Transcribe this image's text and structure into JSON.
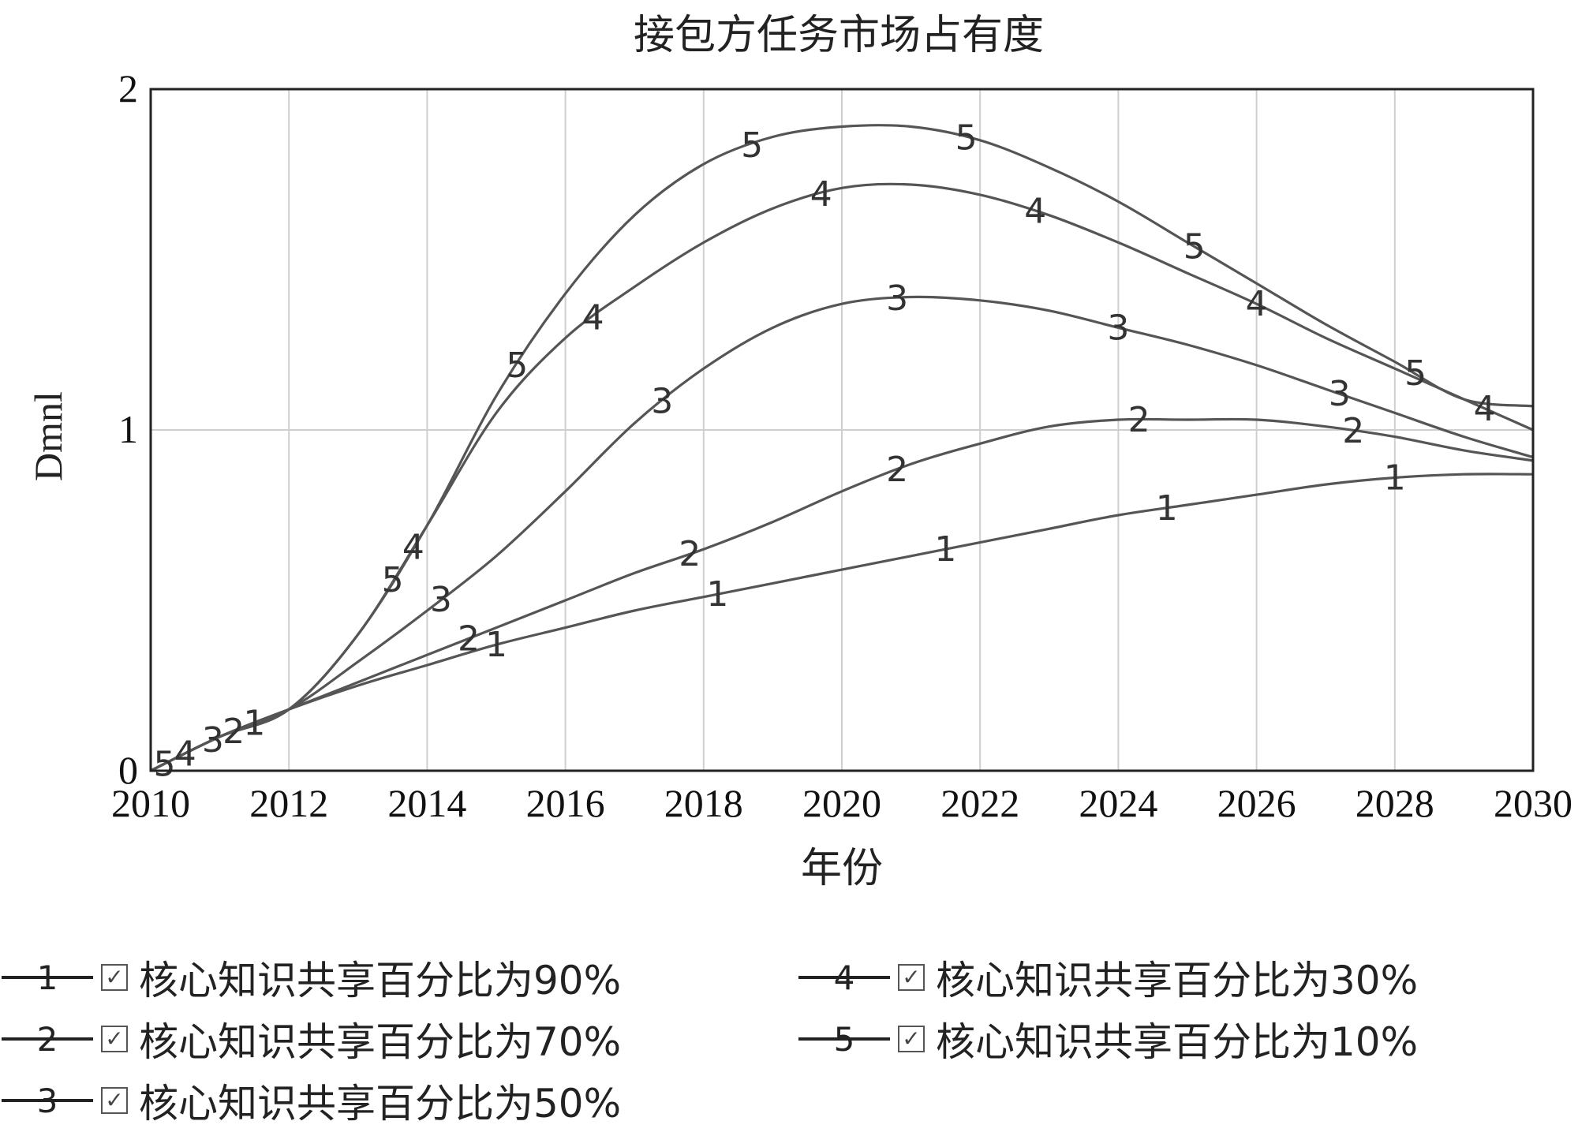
{
  "chart_data": {
    "type": "line",
    "title": "接包方任务市场占有度",
    "xlabel": "年份",
    "ylabel": "Dmnl",
    "xlim": [
      2010,
      2030
    ],
    "ylim": [
      0,
      2
    ],
    "x_ticks": [
      "2010",
      "2012",
      "2014",
      "2016",
      "2018",
      "2020",
      "2022",
      "2024",
      "2026",
      "2028",
      "2030"
    ],
    "y_ticks": [
      "0",
      "1",
      "2"
    ],
    "grid": true,
    "legend_position": "bottom",
    "series": [
      {
        "id": "1",
        "name": "核心知识共享百分比为90%",
        "x": [
          2010,
          2011,
          2012,
          2013,
          2014,
          2015,
          2016,
          2017,
          2018,
          2019,
          2020,
          2021,
          2022,
          2023,
          2024,
          2025,
          2026,
          2027,
          2028,
          2029,
          2030
        ],
        "y": [
          0.0,
          0.1,
          0.18,
          0.25,
          0.31,
          0.37,
          0.42,
          0.47,
          0.51,
          0.55,
          0.59,
          0.63,
          0.67,
          0.71,
          0.75,
          0.78,
          0.81,
          0.84,
          0.86,
          0.87,
          0.87
        ]
      },
      {
        "id": "2",
        "name": "核心知识共享百分比为70%",
        "x": [
          2010,
          2011,
          2012,
          2013,
          2014,
          2015,
          2016,
          2017,
          2018,
          2019,
          2020,
          2021,
          2022,
          2023,
          2024,
          2025,
          2026,
          2027,
          2028,
          2029,
          2030
        ],
        "y": [
          0.0,
          0.1,
          0.18,
          0.26,
          0.34,
          0.42,
          0.5,
          0.58,
          0.65,
          0.73,
          0.82,
          0.9,
          0.96,
          1.01,
          1.03,
          1.03,
          1.03,
          1.01,
          0.98,
          0.94,
          0.91
        ]
      },
      {
        "id": "3",
        "name": "核心知识共享百分比为50%",
        "x": [
          2010,
          2011,
          2012,
          2013,
          2014,
          2015,
          2016,
          2017,
          2018,
          2019,
          2020,
          2021,
          2022,
          2023,
          2024,
          2025,
          2026,
          2027,
          2028,
          2029,
          2030
        ],
        "y": [
          0.0,
          0.1,
          0.18,
          0.32,
          0.47,
          0.63,
          0.82,
          1.02,
          1.18,
          1.3,
          1.37,
          1.39,
          1.38,
          1.35,
          1.3,
          1.25,
          1.19,
          1.12,
          1.05,
          0.98,
          0.92
        ]
      },
      {
        "id": "4",
        "name": "核心知识共享百分比为30%",
        "x": [
          2010,
          2011,
          2012,
          2013,
          2014,
          2015,
          2016,
          2017,
          2018,
          2019,
          2020,
          2021,
          2022,
          2023,
          2024,
          2025,
          2026,
          2027,
          2028,
          2029,
          2030
        ],
        "y": [
          0.0,
          0.1,
          0.18,
          0.4,
          0.72,
          1.05,
          1.27,
          1.42,
          1.55,
          1.65,
          1.71,
          1.72,
          1.69,
          1.63,
          1.55,
          1.46,
          1.37,
          1.27,
          1.18,
          1.09,
          1.0
        ]
      },
      {
        "id": "5",
        "name": "核心知识共享百分比为10%",
        "x": [
          2010,
          2011,
          2012,
          2013,
          2014,
          2015,
          2016,
          2017,
          2018,
          2019,
          2020,
          2021,
          2022,
          2023,
          2024,
          2025,
          2026,
          2027,
          2028,
          2029,
          2030
        ],
        "y": [
          0.0,
          0.1,
          0.18,
          0.4,
          0.72,
          1.1,
          1.4,
          1.63,
          1.78,
          1.86,
          1.89,
          1.89,
          1.85,
          1.77,
          1.67,
          1.55,
          1.43,
          1.31,
          1.2,
          1.09,
          1.07
        ]
      }
    ],
    "markers": {
      "1": [
        2011.5,
        2015.0,
        2018.2,
        2021.5,
        2024.7,
        2028.0
      ],
      "2": [
        2011.2,
        2014.6,
        2017.8,
        2020.8,
        2024.3,
        2027.4
      ],
      "3": [
        2010.9,
        2014.2,
        2017.4,
        2020.8,
        2024.0,
        2027.2
      ],
      "4": [
        2010.5,
        2013.8,
        2016.4,
        2019.7,
        2022.8,
        2026.0,
        2029.3
      ],
      "5": [
        2010.2,
        2013.5,
        2015.3,
        2018.7,
        2021.8,
        2025.1,
        2028.3
      ]
    }
  }
}
